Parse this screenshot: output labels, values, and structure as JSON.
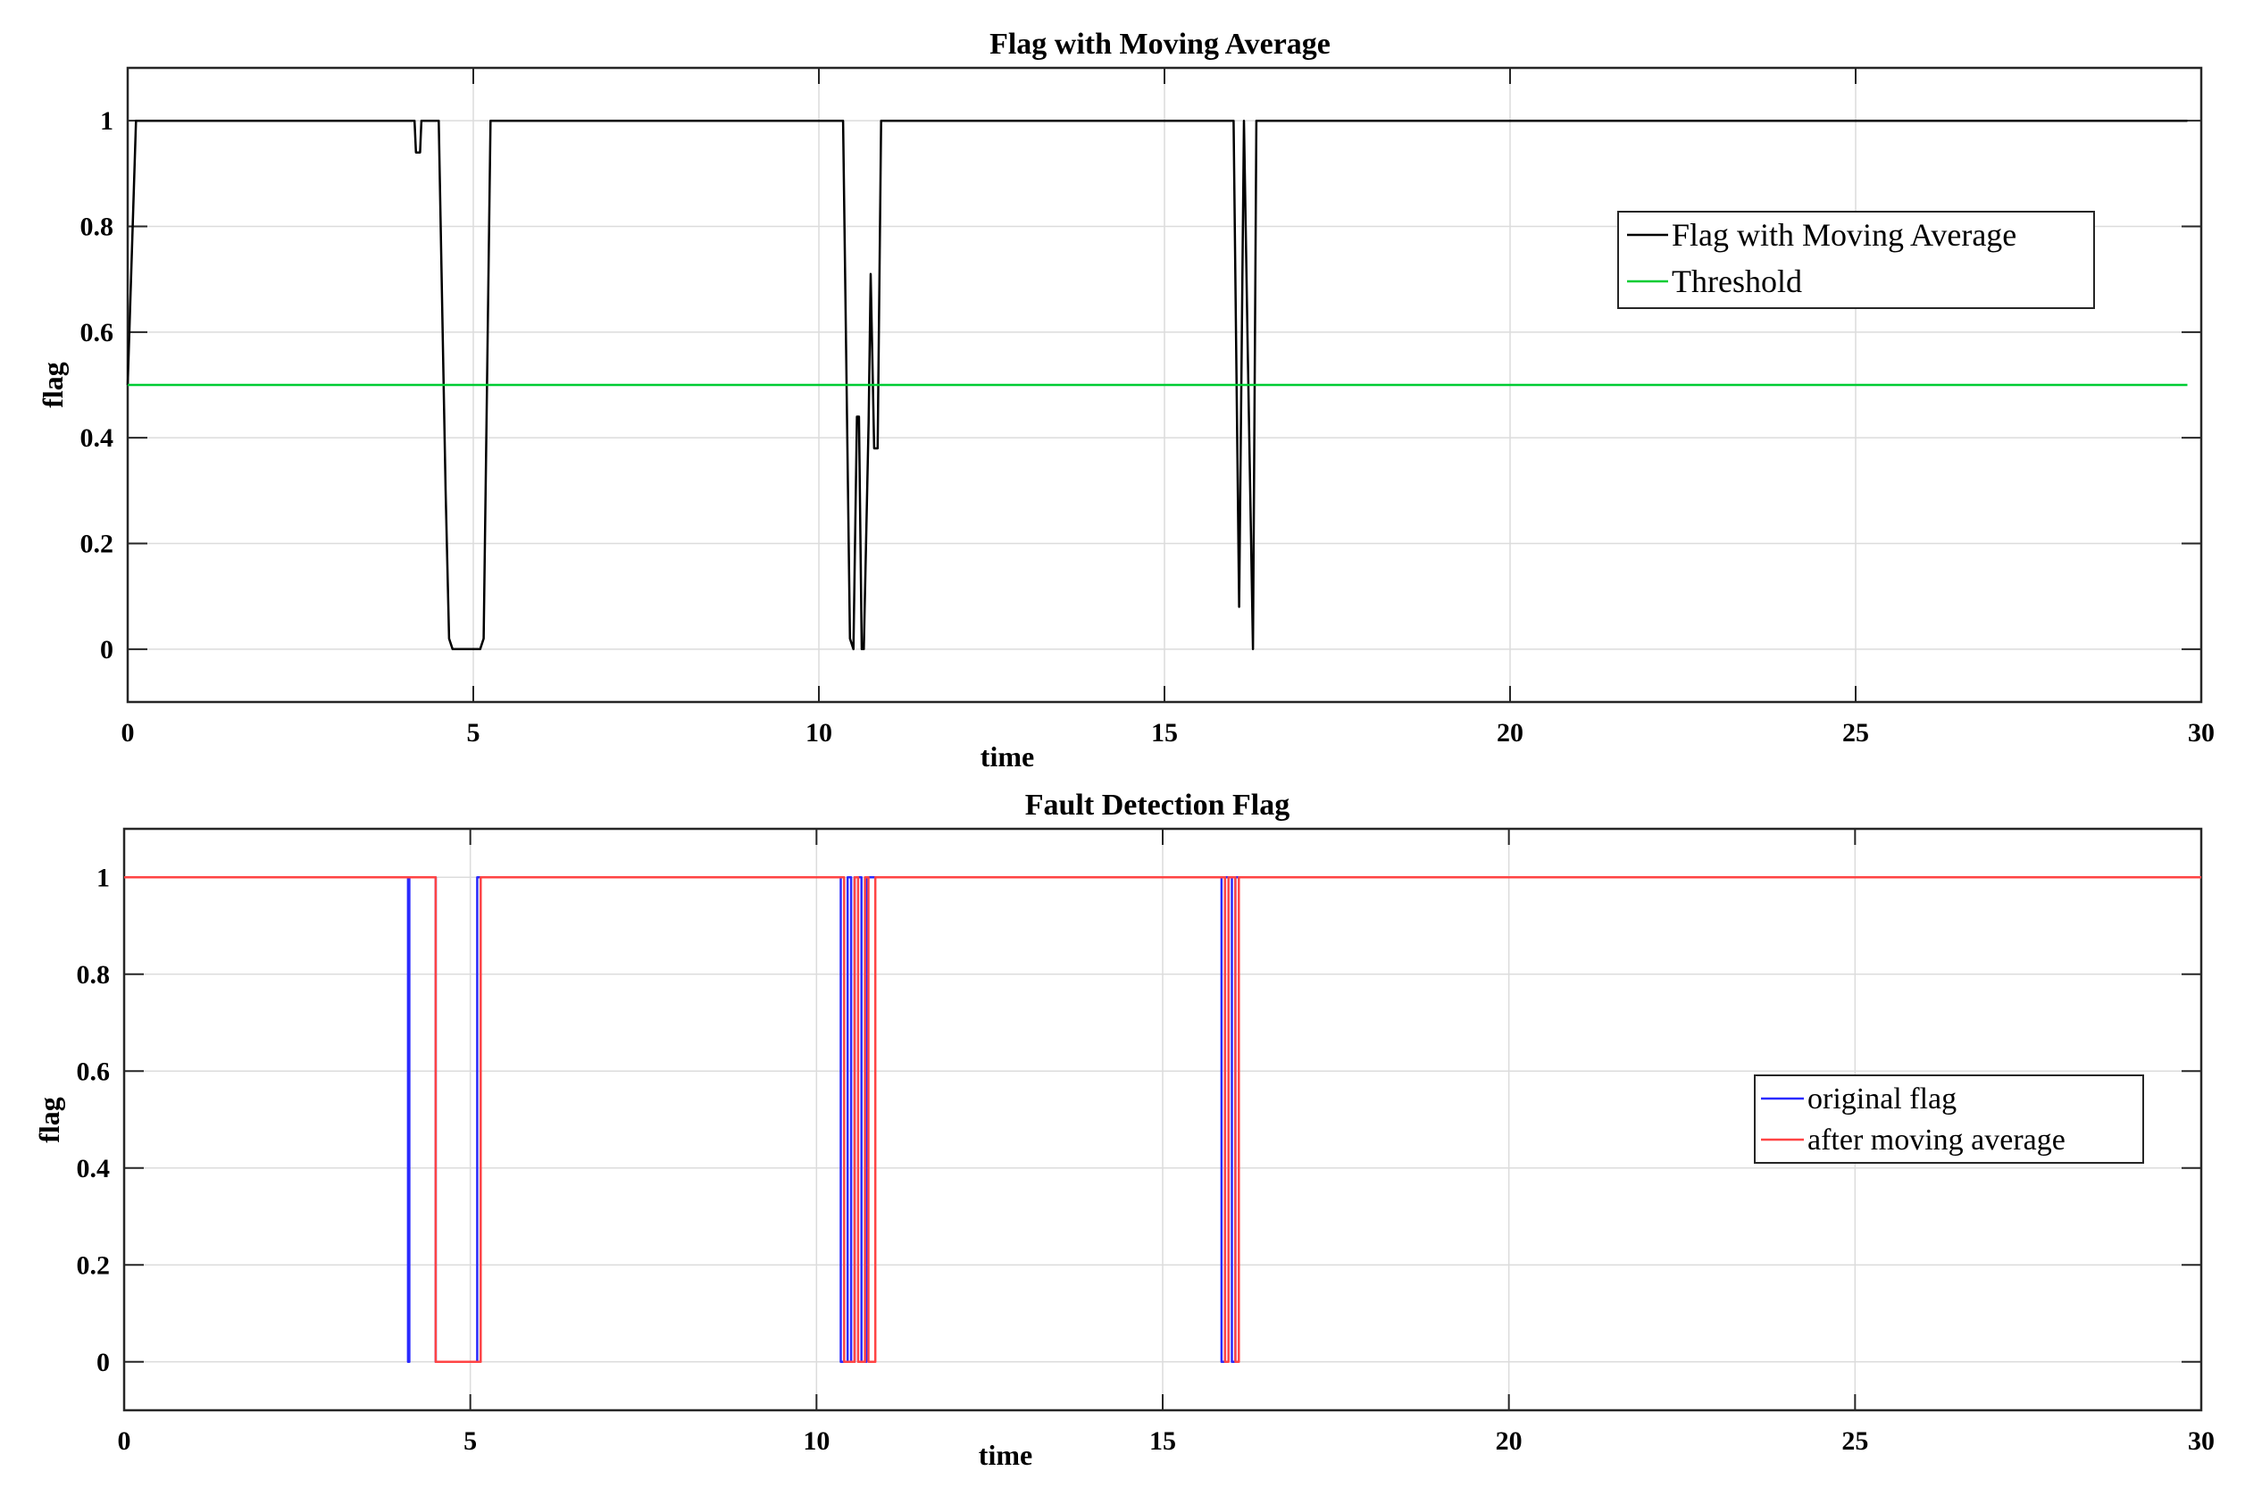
{
  "chart_data": [
    {
      "type": "line",
      "title": "Flag with Moving Average",
      "xlabel": "time",
      "ylabel": "flag",
      "xlim": [
        0,
        30
      ],
      "ylim": [
        -0.1,
        1.1
      ],
      "xticks": [
        0,
        5,
        10,
        15,
        20,
        25,
        30
      ],
      "yticks": [
        0,
        0.2,
        0.4,
        0.6,
        0.8,
        1
      ],
      "ytick_labels": [
        "0",
        "0.2",
        "0.4",
        "0.6",
        "0.8",
        "1"
      ],
      "grid": true,
      "legend_position": "upper-right",
      "series": [
        {
          "name": "Flag with Moving Average",
          "color": "#000000",
          "x": [
            0,
            0.12,
            4.15,
            4.17,
            4.23,
            4.25,
            4.5,
            4.6,
            4.65,
            4.7,
            5.1,
            5.15,
            5.25,
            10.35,
            10.45,
            10.5,
            10.55,
            10.58,
            10.62,
            10.65,
            10.72,
            10.75,
            10.8,
            10.85,
            10.9,
            16.0,
            16.08,
            16.15,
            16.2,
            16.28,
            16.33,
            29.8
          ],
          "y": [
            0.5,
            1,
            1,
            0.94,
            0.94,
            1,
            1,
            0.3,
            0.02,
            0,
            0,
            0.02,
            1,
            1,
            0.02,
            0,
            0.44,
            0.44,
            0,
            0,
            0.43,
            0.71,
            0.38,
            0.38,
            1,
            1,
            0.08,
            1,
            0.6,
            0,
            1,
            1
          ]
        },
        {
          "name": "Threshold",
          "color": "#00cc33",
          "x": [
            0,
            29.8
          ],
          "y": [
            0.5,
            0.5
          ]
        }
      ]
    },
    {
      "type": "line",
      "title": "Fault Detection Flag",
      "xlabel": "time",
      "ylabel": "flag",
      "xlim": [
        0,
        30
      ],
      "ylim": [
        -0.1,
        1.1
      ],
      "xticks": [
        0,
        5,
        10,
        15,
        20,
        25,
        30
      ],
      "yticks": [
        0,
        0.2,
        0.4,
        0.6,
        0.8,
        1
      ],
      "ytick_labels": [
        "0",
        "0.2",
        "0.4",
        "0.6",
        "0.8",
        "1"
      ],
      "grid": true,
      "legend_position": "right",
      "series": [
        {
          "name": "original flag",
          "color": "#2a2aff",
          "x": [
            0,
            4.1,
            4.1,
            4.12,
            4.12,
            4.5,
            4.5,
            5.1,
            5.1,
            10.35,
            10.35,
            10.45,
            10.45,
            10.5,
            10.5,
            10.55,
            10.55,
            10.65,
            10.65,
            10.72,
            10.72,
            10.8,
            10.8,
            15.85,
            15.85,
            15.9,
            15.9,
            16.0,
            16.0,
            16.05,
            16.05,
            16.1,
            16.1,
            30
          ],
          "y": [
            1,
            1,
            0,
            0,
            1,
            1,
            0,
            0,
            1,
            1,
            0,
            0,
            1,
            1,
            0,
            0,
            1,
            1,
            0,
            0,
            1,
            1,
            1,
            1,
            0,
            0,
            1,
            1,
            0,
            0,
            1,
            1,
            1,
            1
          ]
        },
        {
          "name": "after moving average",
          "color": "#ff4444",
          "x": [
            0,
            4.5,
            4.5,
            5.15,
            5.15,
            10.4,
            10.4,
            10.55,
            10.55,
            10.6,
            10.6,
            10.7,
            10.7,
            10.75,
            10.75,
            10.85,
            10.85,
            15.9,
            15.9,
            15.95,
            15.95,
            16.05,
            16.05,
            16.1,
            16.1,
            16.2,
            16.2,
            30
          ],
          "y": [
            1,
            1,
            0,
            0,
            1,
            1,
            0,
            0,
            1,
            1,
            0,
            0,
            1,
            1,
            0,
            0,
            1,
            1,
            0,
            0,
            1,
            1,
            0,
            0,
            1,
            1,
            1,
            1
          ]
        }
      ]
    }
  ]
}
